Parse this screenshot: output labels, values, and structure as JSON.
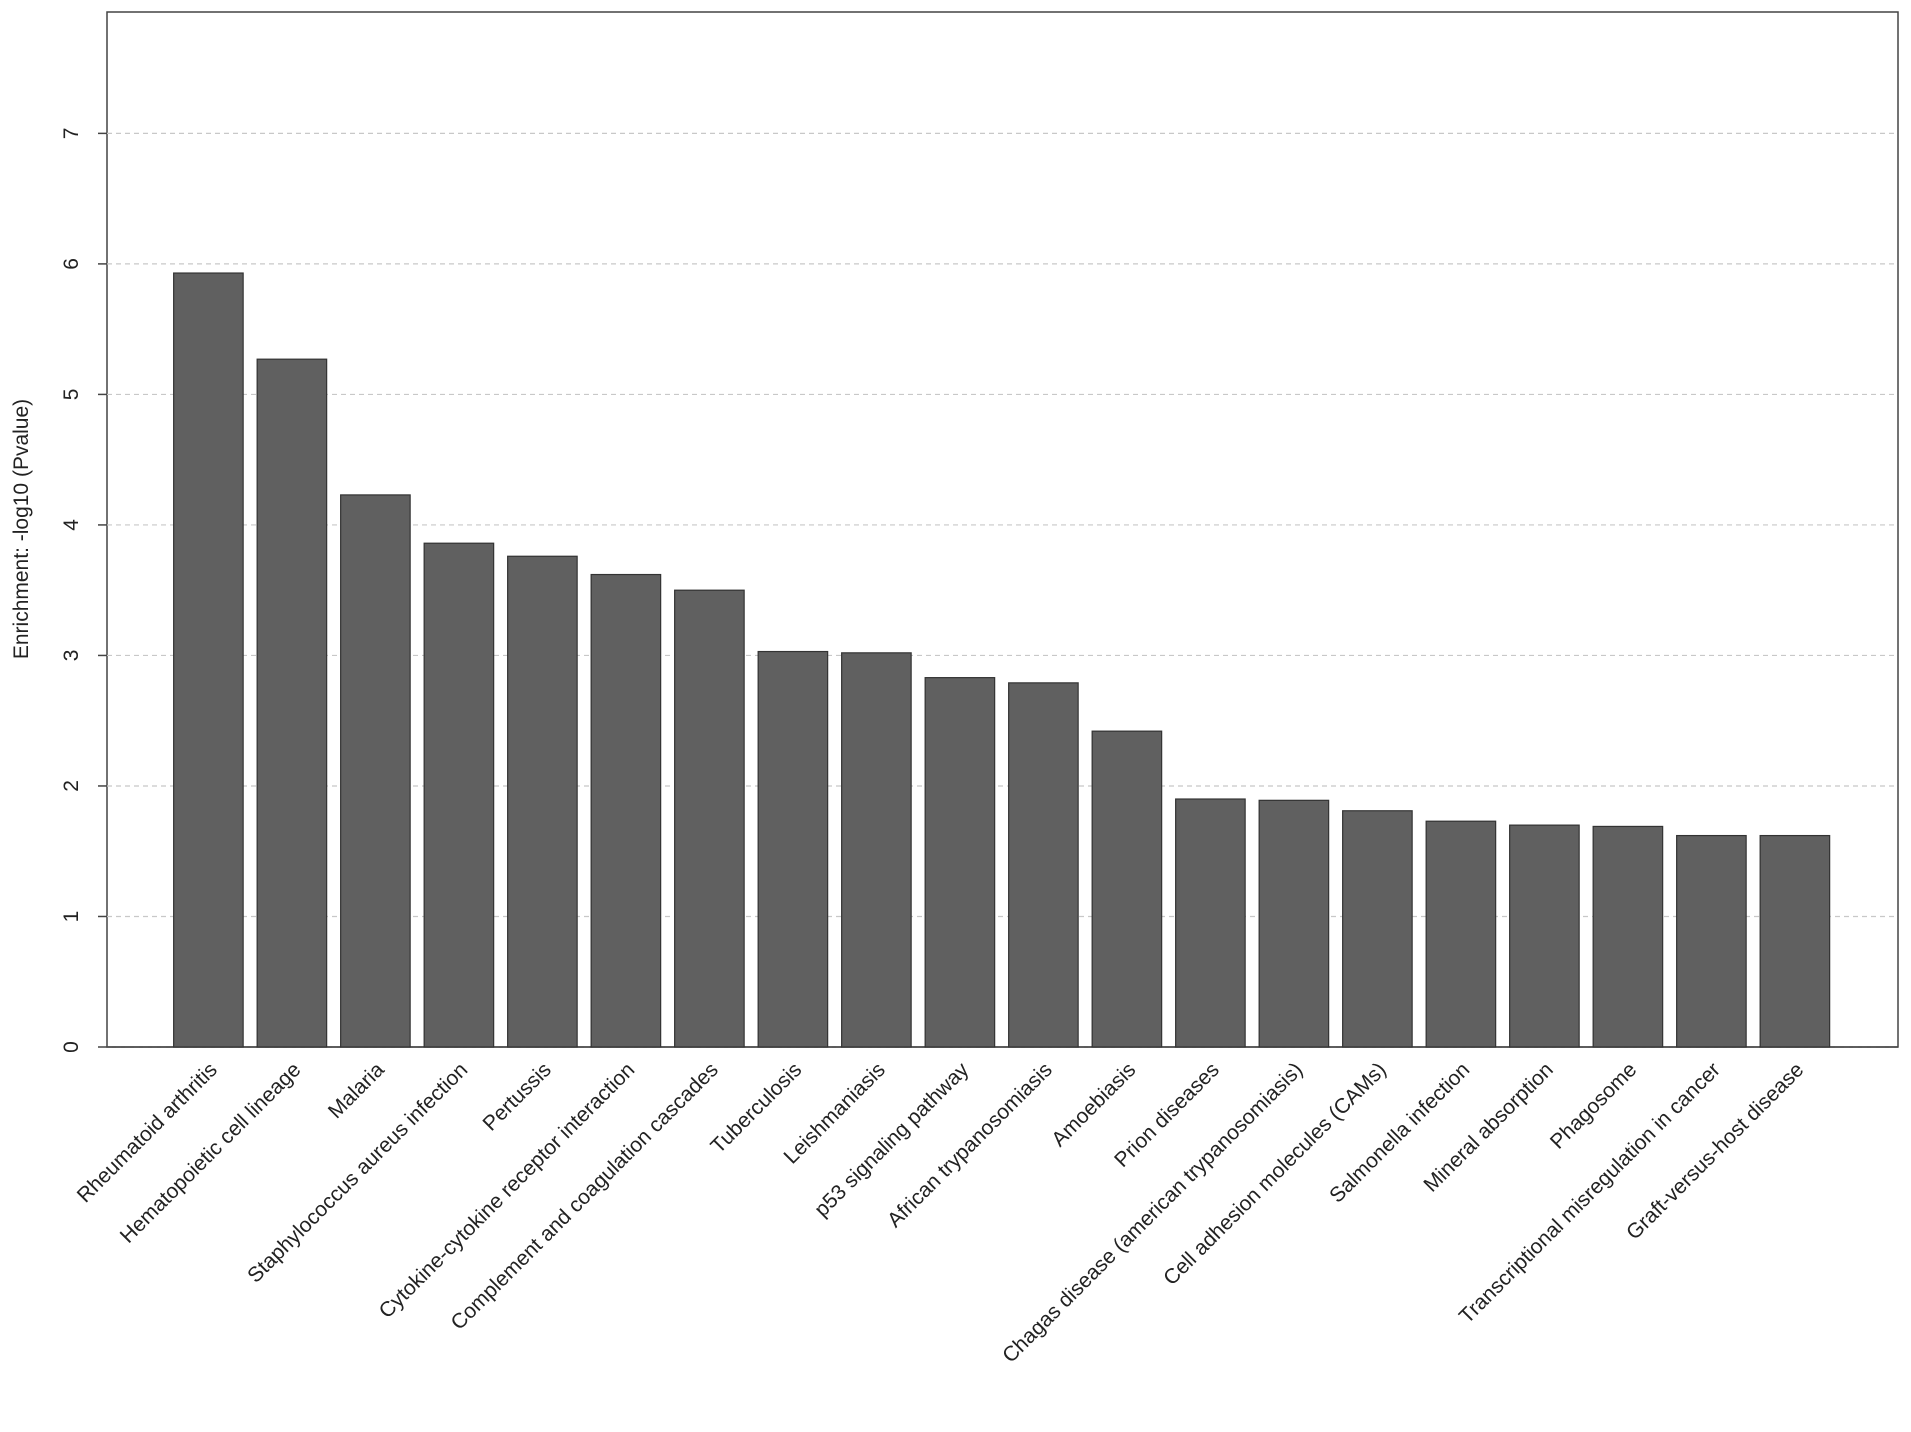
{
  "chart_data": {
    "type": "bar",
    "y_label": "Enrichment: -log10 (Pvalue)",
    "categories": [
      "Rheumatoid arthritis",
      "Hematopoietic cell lineage",
      "Malaria",
      "Staphylococcus aureus infection",
      "Pertussis",
      "Cytokine-cytokine receptor interaction",
      "Complement and coagulation cascades",
      "Tuberculosis",
      "Leishmaniasis",
      "p53 signaling pathway",
      "African trypanosomiasis",
      "Amoebiasis",
      "Prion diseases",
      "Chagas disease (american trypanosomiasis)",
      "Cell adhesion molecules (CAMs)",
      "Salmonella infection",
      "Mineral absorption",
      "Phagosome",
      "Transcriptional misregulation in cancer",
      "Graft-versus-host disease"
    ],
    "values": [
      5.93,
      5.27,
      4.23,
      3.86,
      3.76,
      3.62,
      3.5,
      3.03,
      3.02,
      2.83,
      2.79,
      2.42,
      1.9,
      1.89,
      1.81,
      1.73,
      1.7,
      1.69,
      1.62,
      1.62
    ],
    "color": "#606060",
    "ylim": [
      0,
      7.93
    ],
    "yticks": [
      0,
      1,
      2,
      3,
      4,
      5,
      6,
      7
    ],
    "grid": true
  }
}
